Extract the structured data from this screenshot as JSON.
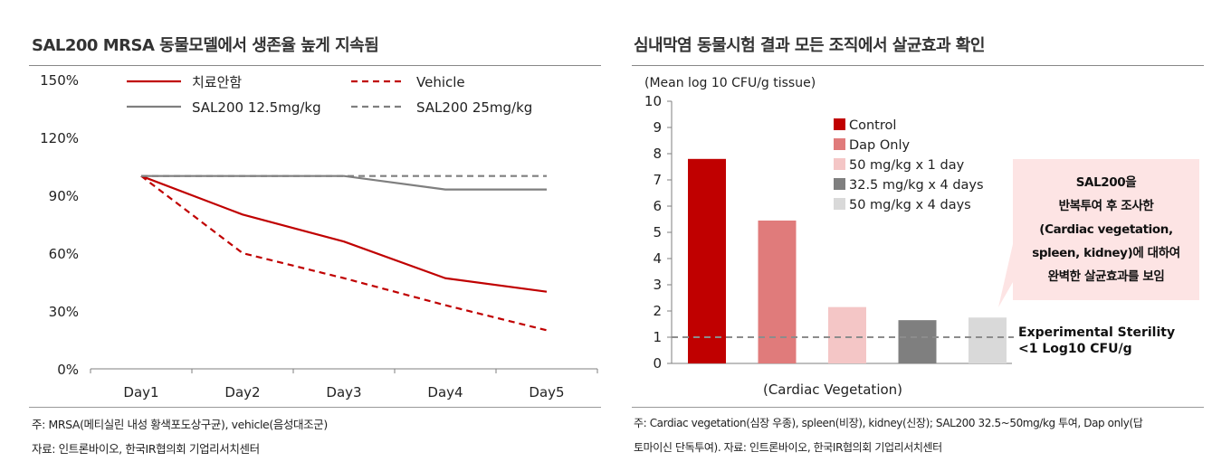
{
  "left_panel": {
    "title": "SAL200 MRSA 동물모델에서 생존율 높게 지속됨",
    "footnote": "주: MRSA(메티실린 내성 황색포도상구균), vehicle(음성대조군)",
    "source": "자료: 인트론바이오, 한국IR협의회 기업리서치센터"
  },
  "right_panel": {
    "title": "심내막염 동물시험 결과 모든 조직에서 살균효과 확인",
    "callout_lines": [
      "SAL200을",
      "반복투여 후 조사한",
      "(Cardiac vegetation,",
      "spleen, kidney)에 대하여",
      "완벽한 살균효과를 보임"
    ],
    "sterility_label_lines": [
      "Experimental Sterility",
      "<1 Log10 CFU/g"
    ],
    "footnote_line1": "주: Cardiac vegetation(심장 우종), spleen(비장), kidney(신장); SAL200 32.5~50mg/kg 투여, Dap only(답",
    "footnote_line2": "토마이신 단독투여).  자료: 인트론바이오, 한국IR협의회 기업리서치센터"
  },
  "chart_data": [
    {
      "type": "line",
      "title": "SAL200 MRSA 동물모델에서 생존율 높게 지속됨",
      "categories": [
        "Day1",
        "Day2",
        "Day3",
        "Day4",
        "Day5"
      ],
      "yticks": [
        "0%",
        "30%",
        "60%",
        "90%",
        "120%",
        "150%"
      ],
      "ylim": [
        0,
        150
      ],
      "xlabel": "",
      "ylabel": "",
      "series": [
        {
          "name": "치료안함",
          "values": [
            100,
            80,
            66,
            47,
            40
          ],
          "color": "#c00000",
          "dash": "solid"
        },
        {
          "name": "Vehicle",
          "values": [
            100,
            60,
            47,
            33,
            20
          ],
          "color": "#c00000",
          "dash": "dashed"
        },
        {
          "name": "SAL200 12.5mg/kg",
          "values": [
            100,
            100,
            100,
            93,
            93
          ],
          "color": "#7f7f7f",
          "dash": "solid"
        },
        {
          "name": "SAL200 25mg/kg",
          "values": [
            100,
            100,
            100,
            100,
            100
          ],
          "color": "#7f7f7f",
          "dash": "dashed"
        }
      ]
    },
    {
      "type": "bar",
      "title": "심내막염 동물시험 결과 모든 조직에서 살균효과 확인",
      "ylabel": "(Mean log 10 CFU/g tissue)",
      "xlabel": "(Cardiac Vegetation)",
      "yticks": [
        "0",
        "1",
        "2",
        "3",
        "4",
        "5",
        "6",
        "7",
        "8",
        "9",
        "10"
      ],
      "ylim": [
        0,
        10
      ],
      "reference_line": 1,
      "series": [
        {
          "name": "Control",
          "value": 7.8,
          "color": "#c00000"
        },
        {
          "name": "Dap Only",
          "value": 5.45,
          "color": "#e07b7b"
        },
        {
          "name": "50 mg/kg x 1 day",
          "value": 2.15,
          "color": "#f4c6c6"
        },
        {
          "name": "32.5 mg/kg x 4 days",
          "value": 1.65,
          "color": "#7f7f7f"
        },
        {
          "name": "50 mg/kg x 4 days",
          "value": 1.75,
          "color": "#d9d9d9"
        }
      ]
    }
  ]
}
